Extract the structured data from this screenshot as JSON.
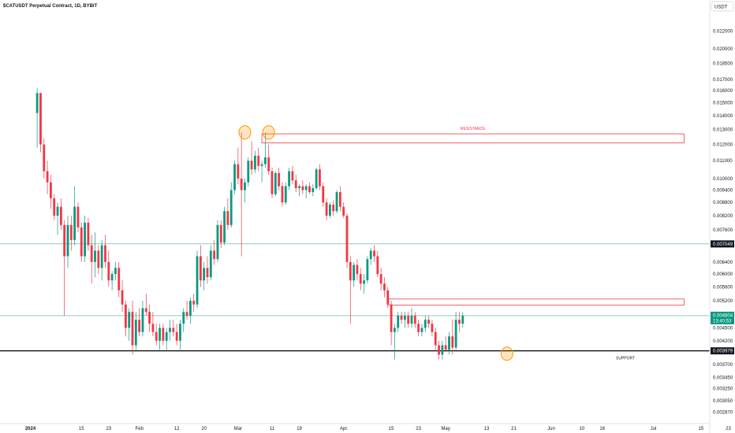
{
  "header": {
    "symbol_title": "$CATUSDT Perpetual Contract, 1D, BYBIT",
    "currency_button": "USDT"
  },
  "chart_data": {
    "type": "candlestick",
    "title": "$CATUSDT Perpetual Contract, 1D, BYBIT",
    "y_scale": "log",
    "ylim": [
      0.00272,
      0.0245
    ],
    "y_ticks": [
      "0.022000",
      "0.020000",
      "0.018500",
      "0.017000",
      "0.016000",
      "0.015000",
      "0.014000",
      "0.013000",
      "0.012000",
      "0.011000",
      "0.010000",
      "0.009400",
      "0.008800",
      "0.008200",
      "0.007600",
      "0.006400",
      "0.006000",
      "0.005600",
      "0.005200",
      "0.004500",
      "0.004200",
      "0.003700",
      "0.003450",
      "0.003250",
      "0.003050",
      "0.002870"
    ],
    "x_ticks": [
      {
        "label": "2024",
        "day": -7,
        "bold": true
      },
      {
        "label": "15",
        "day": 8
      },
      {
        "label": "23",
        "day": 16
      },
      {
        "label": "Feb",
        "day": 25
      },
      {
        "label": "12",
        "day": 36
      },
      {
        "label": "20",
        "day": 44
      },
      {
        "label": "Mar",
        "day": 54
      },
      {
        "label": "11",
        "day": 64
      },
      {
        "label": "19",
        "day": 72
      },
      {
        "label": "Apr",
        "day": 85
      },
      {
        "label": "15",
        "day": 99
      },
      {
        "label": "23",
        "day": 107
      },
      {
        "label": "May",
        "day": 115
      },
      {
        "label": "13",
        "day": 127
      },
      {
        "label": "21",
        "day": 135
      },
      {
        "label": "Jun",
        "day": 146
      },
      {
        "label": "10",
        "day": 155
      },
      {
        "label": "16",
        "day": 161
      },
      {
        "label": "Jul",
        "day": 176
      },
      {
        "label": "15",
        "day": 190
      },
      {
        "label": "23",
        "day": 198
      }
    ],
    "first_candle_day": -5,
    "candles": [
      {
        "o": 0.0142,
        "h": 0.0162,
        "l": 0.0118,
        "c": 0.0158
      },
      {
        "o": 0.0158,
        "h": 0.0158,
        "l": 0.0115,
        "c": 0.012
      },
      {
        "o": 0.012,
        "h": 0.0124,
        "l": 0.01,
        "c": 0.0104
      },
      {
        "o": 0.0104,
        "h": 0.011,
        "l": 0.0092,
        "c": 0.0098
      },
      {
        "o": 0.0098,
        "h": 0.0102,
        "l": 0.0085,
        "c": 0.009
      },
      {
        "o": 0.009,
        "h": 0.0092,
        "l": 0.008,
        "c": 0.0082
      },
      {
        "o": 0.0082,
        "h": 0.0088,
        "l": 0.0074,
        "c": 0.0086
      },
      {
        "o": 0.0086,
        "h": 0.009,
        "l": 0.0076,
        "c": 0.0078
      },
      {
        "o": 0.0078,
        "h": 0.008,
        "l": 0.0048,
        "c": 0.0066
      },
      {
        "o": 0.0066,
        "h": 0.0082,
        "l": 0.0062,
        "c": 0.0078
      },
      {
        "o": 0.0078,
        "h": 0.0082,
        "l": 0.0068,
        "c": 0.0072
      },
      {
        "o": 0.0072,
        "h": 0.0096,
        "l": 0.007,
        "c": 0.0086
      },
      {
        "o": 0.0086,
        "h": 0.0088,
        "l": 0.0075,
        "c": 0.0077
      },
      {
        "o": 0.0077,
        "h": 0.0079,
        "l": 0.0064,
        "c": 0.0066
      },
      {
        "o": 0.0066,
        "h": 0.0082,
        "l": 0.0064,
        "c": 0.0079
      },
      {
        "o": 0.0079,
        "h": 0.0081,
        "l": 0.0068,
        "c": 0.007
      },
      {
        "o": 0.007,
        "h": 0.0074,
        "l": 0.0057,
        "c": 0.0064
      },
      {
        "o": 0.0064,
        "h": 0.0075,
        "l": 0.0059,
        "c": 0.0068
      },
      {
        "o": 0.0068,
        "h": 0.007,
        "l": 0.006,
        "c": 0.0062
      },
      {
        "o": 0.0062,
        "h": 0.0072,
        "l": 0.0058,
        "c": 0.007
      },
      {
        "o": 0.007,
        "h": 0.0074,
        "l": 0.0062,
        "c": 0.0064
      },
      {
        "o": 0.0064,
        "h": 0.0068,
        "l": 0.0056,
        "c": 0.0058
      },
      {
        "o": 0.0058,
        "h": 0.0061,
        "l": 0.0055,
        "c": 0.006
      },
      {
        "o": 0.006,
        "h": 0.0064,
        "l": 0.0058,
        "c": 0.0062
      },
      {
        "o": 0.0062,
        "h": 0.0064,
        "l": 0.0053,
        "c": 0.0055
      },
      {
        "o": 0.0055,
        "h": 0.0058,
        "l": 0.0049,
        "c": 0.0051
      },
      {
        "o": 0.0051,
        "h": 0.0052,
        "l": 0.0043,
        "c": 0.0045
      },
      {
        "o": 0.0045,
        "h": 0.005,
        "l": 0.0042,
        "c": 0.0049
      },
      {
        "o": 0.0049,
        "h": 0.0052,
        "l": 0.0039,
        "c": 0.0041
      },
      {
        "o": 0.0041,
        "h": 0.0049,
        "l": 0.004,
        "c": 0.0047
      },
      {
        "o": 0.0047,
        "h": 0.005,
        "l": 0.0043,
        "c": 0.0044
      },
      {
        "o": 0.0044,
        "h": 0.0052,
        "l": 0.0043,
        "c": 0.005
      },
      {
        "o": 0.005,
        "h": 0.0054,
        "l": 0.0048,
        "c": 0.0049
      },
      {
        "o": 0.0049,
        "h": 0.0051,
        "l": 0.0044,
        "c": 0.0046
      },
      {
        "o": 0.0046,
        "h": 0.0049,
        "l": 0.0043,
        "c": 0.0044
      },
      {
        "o": 0.0044,
        "h": 0.0046,
        "l": 0.0041,
        "c": 0.0042
      },
      {
        "o": 0.0042,
        "h": 0.0046,
        "l": 0.004,
        "c": 0.0045
      },
      {
        "o": 0.0045,
        "h": 0.0046,
        "l": 0.0041,
        "c": 0.0042
      },
      {
        "o": 0.0042,
        "h": 0.0045,
        "l": 0.004,
        "c": 0.0044
      },
      {
        "o": 0.0044,
        "h": 0.0047,
        "l": 0.0042,
        "c": 0.0045
      },
      {
        "o": 0.0045,
        "h": 0.0047,
        "l": 0.0043,
        "c": 0.0044
      },
      {
        "o": 0.0044,
        "h": 0.0046,
        "l": 0.0041,
        "c": 0.0042
      },
      {
        "o": 0.0042,
        "h": 0.0047,
        "l": 0.004,
        "c": 0.0046
      },
      {
        "o": 0.0046,
        "h": 0.005,
        "l": 0.0044,
        "c": 0.0049
      },
      {
        "o": 0.0049,
        "h": 0.0052,
        "l": 0.0047,
        "c": 0.0048
      },
      {
        "o": 0.0048,
        "h": 0.0053,
        "l": 0.0046,
        "c": 0.0052
      },
      {
        "o": 0.0052,
        "h": 0.0054,
        "l": 0.0049,
        "c": 0.0051
      },
      {
        "o": 0.0051,
        "h": 0.0068,
        "l": 0.005,
        "c": 0.0066
      },
      {
        "o": 0.0066,
        "h": 0.007,
        "l": 0.0056,
        "c": 0.0058
      },
      {
        "o": 0.0058,
        "h": 0.0064,
        "l": 0.0055,
        "c": 0.0062
      },
      {
        "o": 0.0062,
        "h": 0.0066,
        "l": 0.0057,
        "c": 0.0059
      },
      {
        "o": 0.0059,
        "h": 0.007,
        "l": 0.0058,
        "c": 0.0068
      },
      {
        "o": 0.0068,
        "h": 0.0072,
        "l": 0.0063,
        "c": 0.0065
      },
      {
        "o": 0.0065,
        "h": 0.008,
        "l": 0.0064,
        "c": 0.0078
      },
      {
        "o": 0.0078,
        "h": 0.008,
        "l": 0.0069,
        "c": 0.0071
      },
      {
        "o": 0.0071,
        "h": 0.0086,
        "l": 0.007,
        "c": 0.0084
      },
      {
        "o": 0.0084,
        "h": 0.009,
        "l": 0.0076,
        "c": 0.0078
      },
      {
        "o": 0.0078,
        "h": 0.0098,
        "l": 0.0077,
        "c": 0.0094
      },
      {
        "o": 0.0094,
        "h": 0.011,
        "l": 0.0092,
        "c": 0.0108
      },
      {
        "o": 0.0108,
        "h": 0.0118,
        "l": 0.0097,
        "c": 0.01
      },
      {
        "o": 0.01,
        "h": 0.0128,
        "l": 0.0066,
        "c": 0.0094
      },
      {
        "o": 0.0094,
        "h": 0.01,
        "l": 0.0088,
        "c": 0.0098
      },
      {
        "o": 0.0098,
        "h": 0.0112,
        "l": 0.0096,
        "c": 0.011
      },
      {
        "o": 0.011,
        "h": 0.0122,
        "l": 0.0102,
        "c": 0.0105
      },
      {
        "o": 0.0105,
        "h": 0.0116,
        "l": 0.0103,
        "c": 0.0113
      },
      {
        "o": 0.0113,
        "h": 0.0118,
        "l": 0.0104,
        "c": 0.0107
      },
      {
        "o": 0.0107,
        "h": 0.011,
        "l": 0.0098,
        "c": 0.0108
      },
      {
        "o": 0.0108,
        "h": 0.0128,
        "l": 0.0106,
        "c": 0.0112
      },
      {
        "o": 0.0112,
        "h": 0.012,
        "l": 0.0102,
        "c": 0.0104
      },
      {
        "o": 0.0104,
        "h": 0.0106,
        "l": 0.009,
        "c": 0.0092
      },
      {
        "o": 0.0092,
        "h": 0.0104,
        "l": 0.0091,
        "c": 0.0103
      },
      {
        "o": 0.0103,
        "h": 0.0106,
        "l": 0.0094,
        "c": 0.0096
      },
      {
        "o": 0.0096,
        "h": 0.0098,
        "l": 0.0086,
        "c": 0.0088
      },
      {
        "o": 0.0088,
        "h": 0.0098,
        "l": 0.0087,
        "c": 0.0096
      },
      {
        "o": 0.0096,
        "h": 0.0106,
        "l": 0.0094,
        "c": 0.0104
      },
      {
        "o": 0.0104,
        "h": 0.0107,
        "l": 0.0097,
        "c": 0.0099
      },
      {
        "o": 0.0099,
        "h": 0.0102,
        "l": 0.0093,
        "c": 0.0095
      },
      {
        "o": 0.0095,
        "h": 0.0097,
        "l": 0.0091,
        "c": 0.0096
      },
      {
        "o": 0.0096,
        "h": 0.0099,
        "l": 0.0092,
        "c": 0.0094
      },
      {
        "o": 0.0094,
        "h": 0.0097,
        "l": 0.009,
        "c": 0.0096
      },
      {
        "o": 0.0096,
        "h": 0.0098,
        "l": 0.0092,
        "c": 0.0093
      },
      {
        "o": 0.0093,
        "h": 0.0097,
        "l": 0.0091,
        "c": 0.0095
      },
      {
        "o": 0.0095,
        "h": 0.0106,
        "l": 0.0094,
        "c": 0.0105
      },
      {
        "o": 0.0105,
        "h": 0.0108,
        "l": 0.0094,
        "c": 0.0096
      },
      {
        "o": 0.0096,
        "h": 0.0098,
        "l": 0.0086,
        "c": 0.0088
      },
      {
        "o": 0.0088,
        "h": 0.009,
        "l": 0.008,
        "c": 0.0082
      },
      {
        "o": 0.0082,
        "h": 0.0088,
        "l": 0.0081,
        "c": 0.0087
      },
      {
        "o": 0.0087,
        "h": 0.0089,
        "l": 0.0082,
        "c": 0.0084
      },
      {
        "o": 0.0084,
        "h": 0.0094,
        "l": 0.0083,
        "c": 0.0093
      },
      {
        "o": 0.0093,
        "h": 0.0096,
        "l": 0.0084,
        "c": 0.0086
      },
      {
        "o": 0.0086,
        "h": 0.0088,
        "l": 0.0081,
        "c": 0.0082
      },
      {
        "o": 0.0082,
        "h": 0.0083,
        "l": 0.0062,
        "c": 0.0064
      },
      {
        "o": 0.0064,
        "h": 0.0066,
        "l": 0.0046,
        "c": 0.0058
      },
      {
        "o": 0.0058,
        "h": 0.0064,
        "l": 0.0056,
        "c": 0.0063
      },
      {
        "o": 0.0063,
        "h": 0.0065,
        "l": 0.0058,
        "c": 0.006
      },
      {
        "o": 0.006,
        "h": 0.0062,
        "l": 0.0055,
        "c": 0.0057
      },
      {
        "o": 0.0057,
        "h": 0.006,
        "l": 0.0054,
        "c": 0.0058
      },
      {
        "o": 0.0058,
        "h": 0.0066,
        "l": 0.0057,
        "c": 0.0065
      },
      {
        "o": 0.0065,
        "h": 0.0069,
        "l": 0.0063,
        "c": 0.0068
      },
      {
        "o": 0.0068,
        "h": 0.007,
        "l": 0.0064,
        "c": 0.0066
      },
      {
        "o": 0.0066,
        "h": 0.0068,
        "l": 0.0059,
        "c": 0.006
      },
      {
        "o": 0.006,
        "h": 0.0062,
        "l": 0.0055,
        "c": 0.0057
      },
      {
        "o": 0.0057,
        "h": 0.0059,
        "l": 0.0053,
        "c": 0.0055
      },
      {
        "o": 0.0055,
        "h": 0.0056,
        "l": 0.005,
        "c": 0.0051
      },
      {
        "o": 0.0051,
        "h": 0.0052,
        "l": 0.0041,
        "c": 0.0044
      },
      {
        "o": 0.0044,
        "h": 0.0046,
        "l": 0.0038,
        "c": 0.0045
      },
      {
        "o": 0.0045,
        "h": 0.0049,
        "l": 0.0044,
        "c": 0.0048
      },
      {
        "o": 0.0048,
        "h": 0.0049,
        "l": 0.0046,
        "c": 0.0047
      },
      {
        "o": 0.0047,
        "h": 0.0049,
        "l": 0.0045,
        "c": 0.0048
      },
      {
        "o": 0.0048,
        "h": 0.0049,
        "l": 0.0045,
        "c": 0.0046
      },
      {
        "o": 0.0046,
        "h": 0.005,
        "l": 0.0045,
        "c": 0.0048
      },
      {
        "o": 0.0048,
        "h": 0.0049,
        "l": 0.0045,
        "c": 0.0046
      },
      {
        "o": 0.0046,
        "h": 0.0047,
        "l": 0.0043,
        "c": 0.0044
      },
      {
        "o": 0.0044,
        "h": 0.0046,
        "l": 0.0043,
        "c": 0.0045
      },
      {
        "o": 0.0045,
        "h": 0.0048,
        "l": 0.0044,
        "c": 0.0047
      },
      {
        "o": 0.0047,
        "h": 0.0048,
        "l": 0.0045,
        "c": 0.0046
      },
      {
        "o": 0.0046,
        "h": 0.0047,
        "l": 0.0043,
        "c": 0.0044
      },
      {
        "o": 0.0044,
        "h": 0.0045,
        "l": 0.004,
        "c": 0.0041
      },
      {
        "o": 0.0041,
        "h": 0.0042,
        "l": 0.0038,
        "c": 0.0039
      },
      {
        "o": 0.0039,
        "h": 0.0042,
        "l": 0.0038,
        "c": 0.0041
      },
      {
        "o": 0.0041,
        "h": 0.0043,
        "l": 0.004,
        "c": 0.004
      },
      {
        "o": 0.004,
        "h": 0.0044,
        "l": 0.0039,
        "c": 0.0043
      },
      {
        "o": 0.0043,
        "h": 0.0047,
        "l": 0.0039,
        "c": 0.00405
      },
      {
        "o": 0.00405,
        "h": 0.0049,
        "l": 0.004,
        "c": 0.0047
      },
      {
        "o": 0.0047,
        "h": 0.0049,
        "l": 0.0044,
        "c": 0.0046
      },
      {
        "o": 0.0046,
        "h": 0.0049,
        "l": 0.0045,
        "c": 0.0048
      }
    ],
    "horizontal_lines": [
      {
        "price": 0.007049,
        "label": "0.007049",
        "color": "#4caf8a",
        "label_bg": "#131722"
      },
      {
        "price": 0.004804,
        "label": "0.004804",
        "sublabel": "13:40:53",
        "color": "#4caf8a",
        "label_bg": "#089981"
      },
      {
        "price": 0.003979,
        "label": "0.003979",
        "color": "#000000",
        "label_bg": "#131722"
      }
    ],
    "zones": [
      {
        "label": "RESISTANCE",
        "day_start": 61,
        "day_end": 185,
        "price_top": 0.0127,
        "price_bottom": 0.0121
      },
      {
        "label": "",
        "day_start": 98,
        "day_end": 185,
        "price_top": 0.00525,
        "price_bottom": 0.00508
      }
    ],
    "annotations": [
      {
        "text": "SUPPORT",
        "day": 165,
        "price": 0.00383
      }
    ],
    "circles": [
      {
        "day": 56,
        "price": 0.0128
      },
      {
        "day": 63,
        "price": 0.0128
      },
      {
        "day": 133,
        "price": 0.00392
      }
    ],
    "colors": {
      "up": "#089981",
      "down": "#f23645",
      "zone": "#f23645",
      "circle": "#ff9800",
      "grid": "#e0e3eb"
    }
  }
}
